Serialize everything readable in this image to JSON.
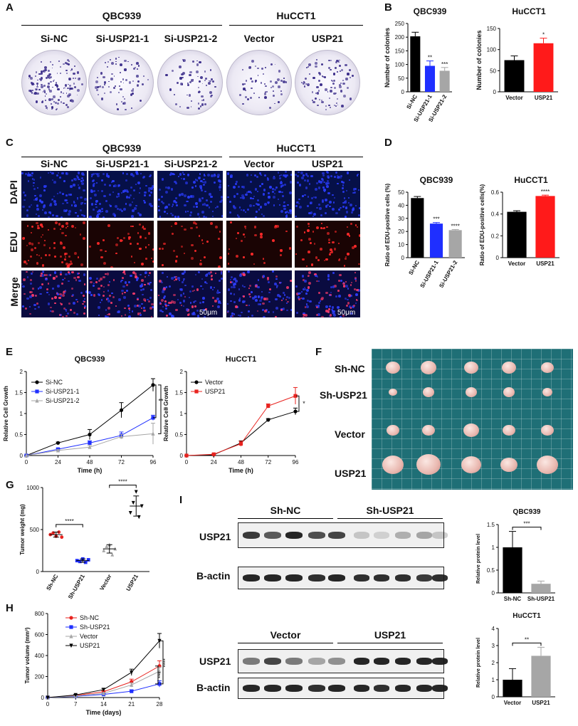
{
  "panel_labels": {
    "A": "A",
    "B": "B",
    "C": "C",
    "D": "D",
    "E": "E",
    "F": "F",
    "G": "G",
    "H": "H",
    "I": "I"
  },
  "panelA": {
    "groups": [
      "QBC939",
      "HuCCT1"
    ],
    "columns": [
      "Si-NC",
      "Si-USP21-1",
      "Si-USP21-2",
      "Vector",
      "USP21"
    ]
  },
  "panelC": {
    "groups": [
      "QBC939",
      "HuCCT1"
    ],
    "columns": [
      "Si-NC",
      "Si-USP21-1",
      "Si-USP21-2",
      "Vector",
      "USP21"
    ],
    "rows": [
      "DAPI",
      "EDU",
      "Merge"
    ],
    "scalebar": "50μm"
  },
  "panelF": {
    "rows": [
      "Sh-NC",
      "Sh-USP21",
      "Vector",
      "USP21"
    ]
  },
  "panelI": {
    "top": {
      "groups": [
        "Sh-NC",
        "Sh-USP21"
      ],
      "rows": [
        "USP21",
        "B-actin"
      ]
    },
    "bottom": {
      "groups": [
        "Vector",
        "USP21"
      ],
      "rows": [
        "USP21",
        "B-actin"
      ]
    }
  },
  "chart_data": [
    {
      "id": "B1",
      "type": "bar",
      "title": "QBC939",
      "ylabel": "Number of colonies",
      "categories": [
        "Si-NC",
        "Si-USP21-1",
        "Si-USP21-2"
      ],
      "values": [
        203,
        95,
        77
      ],
      "errors": [
        15,
        18,
        12
      ],
      "colors": [
        "#000000",
        "#1f2fff",
        "#a6a6a6"
      ],
      "significance": [
        "",
        "**",
        "***"
      ],
      "ylim": [
        0,
        250
      ],
      "yticks": [
        0,
        50,
        100,
        150,
        200,
        250
      ]
    },
    {
      "id": "B2",
      "type": "bar",
      "title": "HuCCT1",
      "ylabel": "Number of colonies",
      "categories": [
        "Vector",
        "USP21"
      ],
      "values": [
        75,
        115
      ],
      "errors": [
        10,
        12
      ],
      "colors": [
        "#000000",
        "#ff1a1a"
      ],
      "significance": [
        "",
        "*"
      ],
      "ylim": [
        0,
        150
      ],
      "yticks": [
        0,
        50,
        100,
        150
      ]
    },
    {
      "id": "D1",
      "type": "bar",
      "title": "QBC939",
      "ylabel": "Ratio of EDU-positive cells (%)",
      "categories": [
        "Si-NC",
        "Si-USP21-1",
        "Si-USP21-2"
      ],
      "values": [
        45.5,
        26,
        21
      ],
      "errors": [
        1.2,
        0.8,
        0.5
      ],
      "colors": [
        "#000000",
        "#1f2fff",
        "#a6a6a6"
      ],
      "significance": [
        "",
        "***",
        "****"
      ],
      "ylim": [
        0,
        50
      ],
      "yticks": [
        0,
        10,
        20,
        30,
        40,
        50
      ]
    },
    {
      "id": "D2",
      "type": "bar",
      "title": "HuCCT1",
      "ylabel": "Ratio of EDU-positive cells(%)",
      "categories": [
        "Vector",
        "USP21"
      ],
      "values": [
        0.42,
        0.565
      ],
      "errors": [
        0.01,
        0.008
      ],
      "colors": [
        "#000000",
        "#ff1a1a"
      ],
      "significance": [
        "",
        "****"
      ],
      "ylim": [
        0,
        0.6
      ],
      "yticks": [
        0.0,
        0.2,
        0.4,
        0.6
      ]
    },
    {
      "id": "E1",
      "type": "line",
      "title": "QBC939",
      "xlabel": "Time (h)",
      "ylabel": "Relative Cell Growth",
      "x": [
        0,
        24,
        48,
        72,
        96
      ],
      "xlim": [
        0,
        96
      ],
      "ylim": [
        0,
        2.0
      ],
      "yticks": [
        0,
        0.5,
        1.0,
        1.5,
        2.0
      ],
      "series": [
        {
          "name": "Si-NC",
          "values": [
            0,
            0.3,
            0.5,
            1.08,
            1.68
          ],
          "errors": [
            0,
            0.02,
            0.12,
            0.18,
            0.15
          ],
          "color": "#000000",
          "marker": "circle"
        },
        {
          "name": "Si-USP21-1",
          "values": [
            0,
            0.15,
            0.3,
            0.48,
            0.9
          ],
          "errors": [
            0,
            0.02,
            0.05,
            0.08,
            0.06
          ],
          "color": "#1f2fff",
          "marker": "square"
        },
        {
          "name": "Si-USP21-2",
          "values": [
            0,
            0.12,
            0.2,
            0.45,
            0.52
          ],
          "errors": [
            0,
            0.02,
            0.04,
            0.05,
            0.25
          ],
          "color": "#a6a6a6",
          "marker": "triangle"
        }
      ],
      "significance": [
        "**",
        "*"
      ]
    },
    {
      "id": "E2",
      "type": "line",
      "title": "HuCCT1",
      "xlabel": "Time (h)",
      "ylabel": "Relative Cell Growth",
      "x": [
        0,
        24,
        48,
        72,
        96
      ],
      "xlim": [
        0,
        96
      ],
      "ylim": [
        0,
        2.0
      ],
      "yticks": [
        0,
        0.5,
        1.0,
        1.5,
        2.0
      ],
      "series": [
        {
          "name": "Vector",
          "values": [
            0,
            0.02,
            0.3,
            0.85,
            1.05
          ],
          "errors": [
            0,
            0.01,
            0.05,
            0.03,
            0.08
          ],
          "color": "#000000",
          "marker": "circle"
        },
        {
          "name": "USP21",
          "values": [
            0,
            0.03,
            0.28,
            1.18,
            1.42
          ],
          "errors": [
            0,
            0.01,
            0.06,
            0.05,
            0.2
          ],
          "color": "#e8231f",
          "marker": "square"
        }
      ],
      "significance": [
        "*"
      ]
    },
    {
      "id": "G",
      "type": "scatter",
      "ylabel": "Tumor weight (mg)",
      "categories": [
        "Sh-NC",
        "Sh-USP21",
        "Vector",
        "USP21"
      ],
      "ylim": [
        0,
        1000
      ],
      "yticks": [
        0,
        500,
        1000
      ],
      "points": [
        [
          440,
          460,
          420,
          470,
          410
        ],
        [
          130,
          120,
          150,
          110,
          140
        ],
        [
          250,
          300,
          320,
          200,
          270
        ],
        [
          700,
          820,
          950,
          650,
          780
        ]
      ],
      "means": [
        440,
        130,
        270,
        780
      ],
      "errors": [
        30,
        20,
        50,
        120
      ],
      "colors": [
        "#e8231f",
        "#1f2fff",
        "#a6a6a6",
        "#000000"
      ],
      "markers": [
        "circle",
        "square",
        "triangle",
        "triangle-down"
      ],
      "significance": [
        "****",
        "****"
      ]
    },
    {
      "id": "H",
      "type": "line",
      "xlabel": "Time (days)",
      "ylabel": "Tumor volume (mm³)",
      "x": [
        0,
        7,
        14,
        21,
        28
      ],
      "xlim": [
        0,
        28
      ],
      "ylim": [
        0,
        800
      ],
      "yticks": [
        0,
        200,
        400,
        600,
        800
      ],
      "series": [
        {
          "name": "Sh-NC",
          "values": [
            0,
            20,
            55,
            150,
            300
          ],
          "errors": [
            0,
            5,
            10,
            25,
            50
          ],
          "color": "#e8231f",
          "marker": "circle"
        },
        {
          "name": "Sh-USP21",
          "values": [
            0,
            12,
            30,
            60,
            130
          ],
          "errors": [
            0,
            4,
            6,
            12,
            30
          ],
          "color": "#1f2fff",
          "marker": "square"
        },
        {
          "name": "Vector",
          "values": [
            0,
            15,
            40,
            120,
            250
          ],
          "errors": [
            0,
            4,
            8,
            20,
            40
          ],
          "color": "#a6a6a6",
          "marker": "triangle"
        },
        {
          "name": "USP21",
          "values": [
            0,
            25,
            75,
            240,
            540
          ],
          "errors": [
            0,
            6,
            12,
            30,
            70
          ],
          "color": "#000000",
          "marker": "triangle-down"
        }
      ],
      "significance": [
        "****",
        "***"
      ]
    },
    {
      "id": "I1",
      "type": "bar",
      "title": "QBC939",
      "ylabel": "Relative protein level",
      "categories": [
        "Sh-NC",
        "Sh-USP21"
      ],
      "values": [
        1.0,
        0.2
      ],
      "errors": [
        0.35,
        0.06
      ],
      "colors": [
        "#000000",
        "#a6a6a6"
      ],
      "significance": [
        "***"
      ],
      "ylim": [
        0,
        1.5
      ],
      "yticks": [
        0.0,
        0.5,
        1.0,
        1.5
      ]
    },
    {
      "id": "I2",
      "type": "bar",
      "title": "HuCCT1",
      "ylabel": "Relative protein level",
      "categories": [
        "Vector",
        "USP21"
      ],
      "values": [
        1.0,
        2.4
      ],
      "errors": [
        0.65,
        0.5
      ],
      "colors": [
        "#000000",
        "#a6a6a6"
      ],
      "significance": [
        "**"
      ],
      "ylim": [
        0,
        4
      ],
      "yticks": [
        0,
        1,
        2,
        3,
        4
      ]
    }
  ]
}
